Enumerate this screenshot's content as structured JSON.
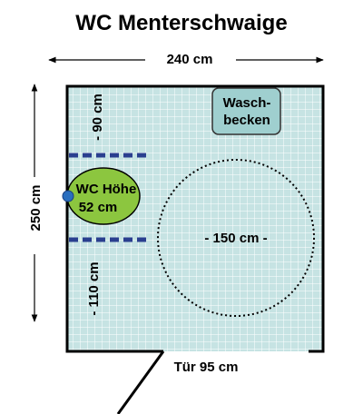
{
  "title": "WC Menterschwaige",
  "dimensions": {
    "width": "240 cm",
    "height": "250 cm",
    "top_clearance": "- 90 cm",
    "bottom_clearance": "- 110 cm",
    "turning_circle": "- 150 cm -",
    "door": "Tür 95 cm"
  },
  "fixtures": {
    "washbasin_line1": "Wasch-",
    "washbasin_line2": "becken",
    "toilet_line1": "WC Höhe",
    "toilet_line2": "52 cm"
  },
  "colors": {
    "tile_fill": "#c6e3e3",
    "tile_grid": "#ffffff",
    "toilet": "#8cc63f",
    "washbasin": "#9fcfcf",
    "grab_bar": "#2a3f8f",
    "toilet_dot": "#2a6fbf"
  }
}
